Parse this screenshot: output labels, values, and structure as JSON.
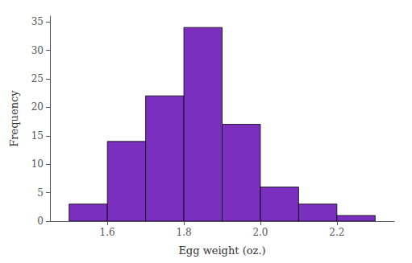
{
  "chart_data": {
    "type": "histogram",
    "xlabel": "Egg weight (oz.)",
    "ylabel": "Frequency",
    "bins": [
      1.5,
      1.6,
      1.7,
      1.8,
      1.9,
      2.0,
      2.1,
      2.2,
      2.3
    ],
    "values": [
      3,
      14,
      22,
      34,
      17,
      6,
      3,
      1
    ],
    "color": "#7B2FBE",
    "xlim": [
      1.45,
      2.35
    ],
    "xticks": [
      1.6,
      1.8,
      {
        "value": 2.0,
        "label": "2.0"
      },
      2.2
    ],
    "ylim": [
      0,
      36
    ],
    "yticks": [
      0,
      5,
      10,
      15,
      20,
      25,
      30,
      35
    ],
    "grid": false
  }
}
